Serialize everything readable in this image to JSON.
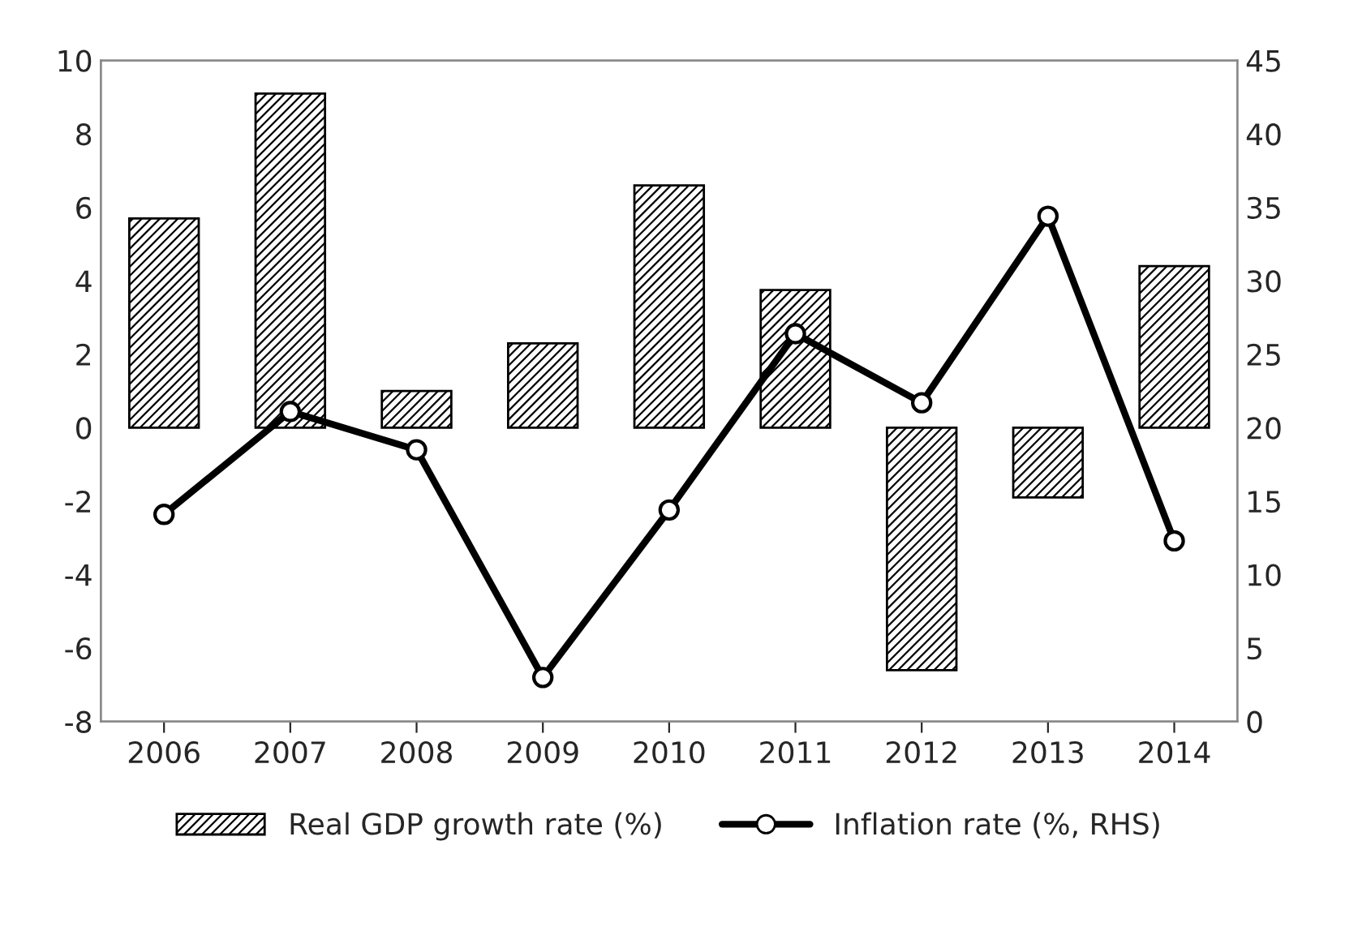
{
  "chart_data": {
    "type": "bar",
    "categories": [
      "2006",
      "2007",
      "2008",
      "2009",
      "2010",
      "2011",
      "2012",
      "2013",
      "2014"
    ],
    "series": [
      {
        "name": "Real GDP growth rate (%)",
        "color": "#000000",
        "values": [
          5.7,
          9.1,
          1.0,
          2.3,
          6.6,
          3.75,
          -6.6,
          -1.9,
          4.4
        ]
      },
      {
        "name": "Inflation rate (%, RHS)",
        "type": "line",
        "axis": "y2",
        "color": "#000000",
        "marker": "circle",
        "values": [
          14.1,
          21.1,
          18.5,
          3.0,
          14.4,
          26.4,
          21.7,
          34.4,
          12.3
        ]
      }
    ],
    "ylim": [
      -8,
      10
    ],
    "yticks": [
      -8,
      -6,
      -4,
      -2,
      0,
      2,
      4,
      6,
      8,
      10
    ],
    "y2lim": [
      0,
      45
    ],
    "y2ticks": [
      0,
      5,
      10,
      15,
      20,
      25,
      30,
      35,
      40,
      45
    ],
    "grid": false,
    "legend": "bottom"
  }
}
